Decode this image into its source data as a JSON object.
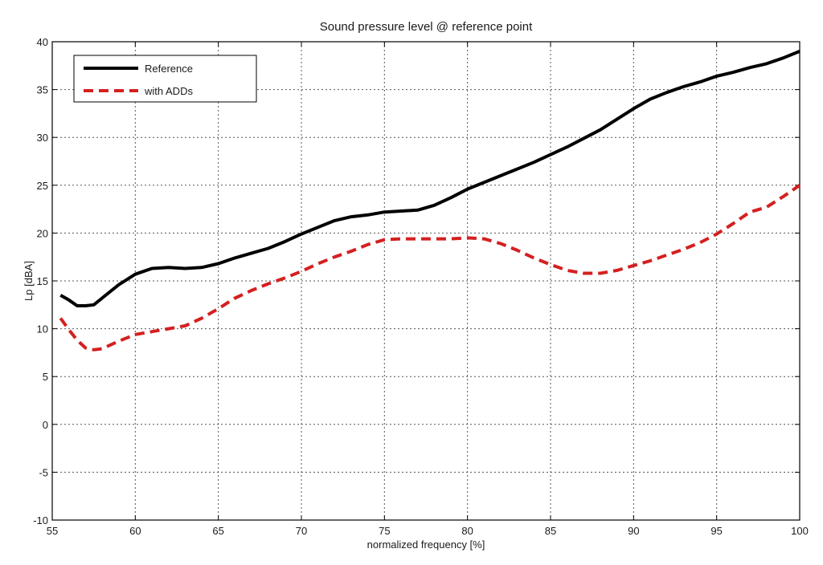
{
  "chart_data": {
    "type": "line",
    "title": "Sound pressure level @ reference point",
    "xlabel": "normalized frequency [%]",
    "ylabel": "Lp [dBA]",
    "xlim": [
      55,
      100
    ],
    "ylim": [
      -10,
      40
    ],
    "xticks": [
      55,
      60,
      65,
      70,
      75,
      80,
      85,
      90,
      95,
      100
    ],
    "yticks": [
      -10,
      -5,
      0,
      5,
      10,
      15,
      20,
      25,
      30,
      35,
      40
    ],
    "grid": true,
    "legend_position": "top-left",
    "series": [
      {
        "name": "Reference",
        "color": "#000000",
        "dash": "solid",
        "x": [
          55.5,
          56,
          56.5,
          57,
          57.5,
          58,
          59,
          60,
          61,
          62,
          63,
          64,
          65,
          66,
          67,
          68,
          69,
          70,
          71,
          72,
          73,
          74,
          75,
          76,
          77,
          78,
          79,
          80,
          82,
          84,
          86,
          88,
          90,
          91,
          92,
          93,
          94,
          95,
          96,
          97,
          98,
          99,
          100
        ],
        "y": [
          13.5,
          13.0,
          12.4,
          12.4,
          12.5,
          13.2,
          14.6,
          15.7,
          16.3,
          16.4,
          16.3,
          16.4,
          16.8,
          17.4,
          17.9,
          18.4,
          19.1,
          19.9,
          20.6,
          21.3,
          21.7,
          21.9,
          22.2,
          22.3,
          22.4,
          22.9,
          23.7,
          24.6,
          26.0,
          27.4,
          29.0,
          30.8,
          33.0,
          34.0,
          34.7,
          35.3,
          35.8,
          36.4,
          36.8,
          37.3,
          37.7,
          38.3,
          39.0
        ]
      },
      {
        "name": "with ADDs",
        "color": "#d42020",
        "dash": "dashed",
        "x": [
          55.5,
          56,
          56.5,
          57,
          57.5,
          58,
          59,
          60,
          61,
          62,
          63,
          64,
          65,
          66,
          67,
          68,
          69,
          70,
          71,
          72,
          73,
          74,
          75,
          76,
          77,
          78,
          79,
          80,
          81,
          82,
          83,
          84,
          85,
          86,
          87,
          88,
          89,
          90,
          91,
          92,
          93,
          94,
          95,
          96,
          97,
          98,
          99,
          100
        ],
        "y": [
          11.1,
          9.9,
          8.8,
          8.0,
          7.8,
          7.9,
          8.7,
          9.4,
          9.7,
          10.0,
          10.3,
          11.1,
          12.1,
          13.2,
          14.0,
          14.7,
          15.3,
          16.0,
          16.8,
          17.5,
          18.1,
          18.8,
          19.3,
          19.4,
          19.4,
          19.4,
          19.4,
          19.5,
          19.4,
          18.9,
          18.2,
          17.4,
          16.7,
          16.1,
          15.8,
          15.8,
          16.1,
          16.6,
          17.1,
          17.7,
          18.3,
          19.0,
          19.9,
          21.0,
          22.2,
          22.7,
          23.8,
          25.0
        ]
      }
    ]
  }
}
